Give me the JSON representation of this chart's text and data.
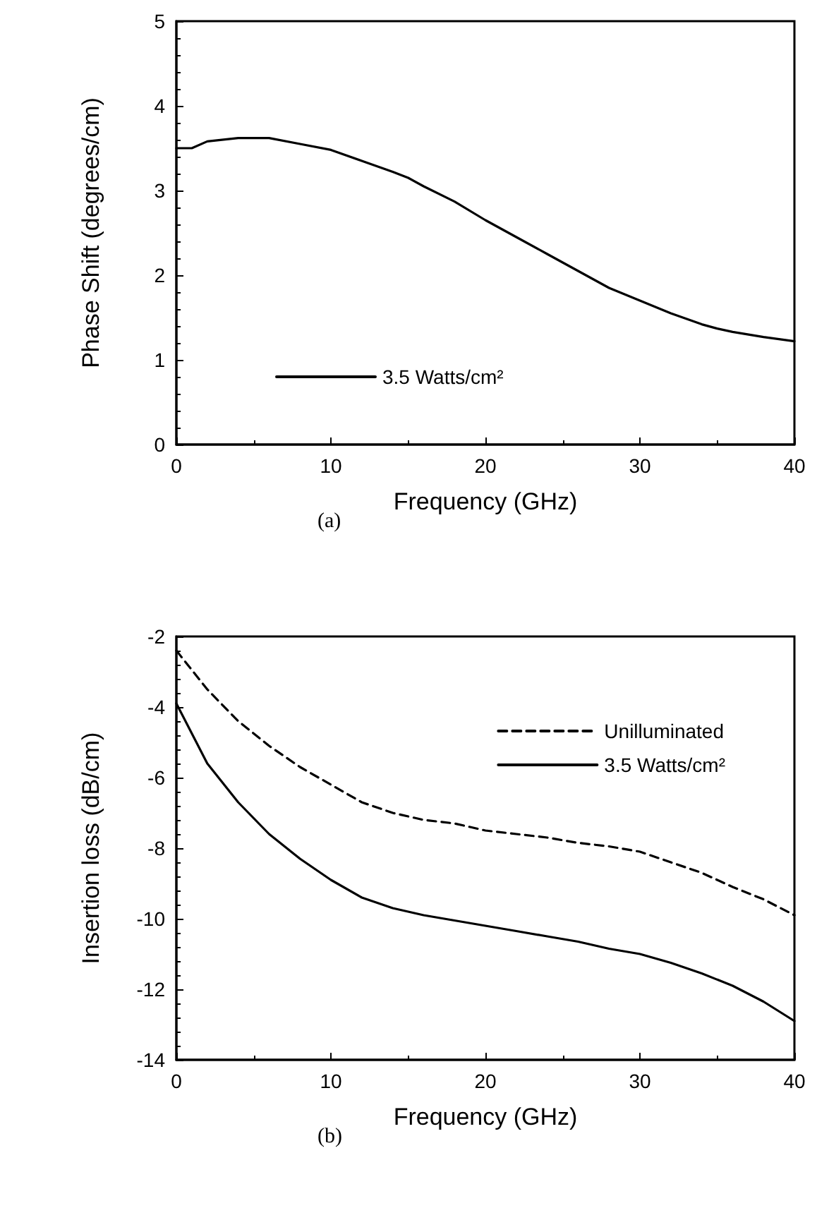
{
  "chart_data": [
    {
      "type": "line",
      "xlabel": "Frequency (GHz)",
      "ylabel": "Phase Shift (degrees/cm)",
      "annotations": [
        "(a)"
      ],
      "xlim": [
        0,
        40
      ],
      "xticks": [
        0,
        10,
        20,
        30,
        40
      ],
      "ylim": [
        0,
        5
      ],
      "yticks": [
        0,
        1,
        2,
        3,
        4,
        5
      ],
      "grid": false,
      "legend": "bottom",
      "marker": "none",
      "series": [
        {
          "name": "3.5 Watts/cm²",
          "color": "#000000",
          "line_style": "solid",
          "x": [
            0,
            1,
            2,
            4,
            6,
            8,
            10,
            12,
            14,
            15,
            16,
            18,
            20,
            22,
            24,
            26,
            28,
            30,
            32,
            34,
            35,
            36,
            38,
            40
          ],
          "values": [
            3.5,
            3.5,
            3.58,
            3.62,
            3.62,
            3.55,
            3.48,
            3.35,
            3.22,
            3.15,
            3.05,
            2.87,
            2.65,
            2.45,
            2.25,
            2.05,
            1.85,
            1.7,
            1.55,
            1.42,
            1.37,
            1.33,
            1.27,
            1.22
          ]
        }
      ]
    },
    {
      "type": "line",
      "xlabel": "Frequency (GHz)",
      "ylabel": "Insertion loss (dB/cm)",
      "annotations": [
        "(b)"
      ],
      "xlim": [
        0,
        40
      ],
      "xticks": [
        0,
        10,
        20,
        30,
        40
      ],
      "ylim": [
        -14,
        -2
      ],
      "yticks": [
        -14,
        -12,
        -10,
        -8,
        -6,
        -4,
        -2
      ],
      "grid": false,
      "legend": "top right",
      "marker": "none",
      "series": [
        {
          "name": "Unilluminated",
          "color": "#000000",
          "line_style": "dashed",
          "x": [
            0,
            2,
            4,
            6,
            8,
            10,
            12,
            14,
            16,
            18,
            20,
            22,
            24,
            26,
            28,
            30,
            32,
            34,
            36,
            38,
            40
          ],
          "values": [
            -2.4,
            -3.5,
            -4.4,
            -5.1,
            -5.7,
            -6.2,
            -6.7,
            -7.0,
            -7.2,
            -7.3,
            -7.5,
            -7.6,
            -7.7,
            -7.85,
            -7.95,
            -8.1,
            -8.4,
            -8.7,
            -9.1,
            -9.45,
            -9.9
          ]
        },
        {
          "name": "3.5 Watts/cm²",
          "color": "#000000",
          "line_style": "solid",
          "x": [
            0,
            2,
            4,
            6,
            8,
            10,
            12,
            14,
            16,
            18,
            20,
            22,
            24,
            26,
            28,
            30,
            32,
            34,
            36,
            38,
            40
          ],
          "values": [
            -3.9,
            -5.6,
            -6.7,
            -7.6,
            -8.3,
            -8.9,
            -9.4,
            -9.7,
            -9.9,
            -10.05,
            -10.2,
            -10.35,
            -10.5,
            -10.65,
            -10.85,
            -11.0,
            -11.25,
            -11.55,
            -11.9,
            -12.35,
            -12.9
          ]
        }
      ]
    }
  ]
}
